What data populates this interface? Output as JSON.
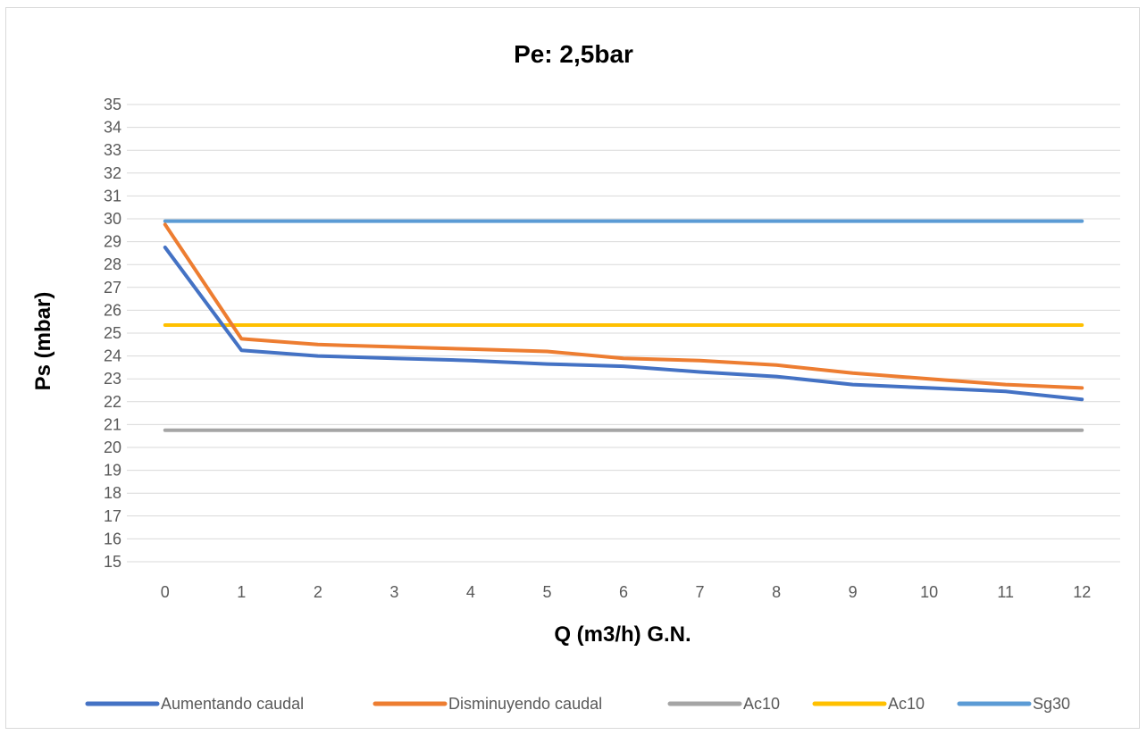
{
  "chart_data": {
    "type": "line",
    "title": "Pe: 2,5bar",
    "xlabel": "Q (m3/h) G.N.",
    "ylabel": "Ps (mbar)",
    "x": [
      0,
      1,
      2,
      3,
      4,
      5,
      6,
      7,
      8,
      9,
      10,
      11,
      12
    ],
    "x_tick_labels": [
      "0",
      "1",
      "2",
      "3",
      "4",
      "5",
      "6",
      "7",
      "8",
      "9",
      "10",
      "11",
      "12"
    ],
    "ylim": [
      15,
      35
    ],
    "y_tick_labels": [
      "15",
      "16",
      "17",
      "18",
      "19",
      "20",
      "21",
      "22",
      "23",
      "24",
      "25",
      "26",
      "27",
      "28",
      "29",
      "30",
      "31",
      "32",
      "33",
      "34",
      "35"
    ],
    "grid": true,
    "legend_position": "bottom",
    "series": [
      {
        "name": "Aumentando caudal",
        "color": "#4472c4",
        "values": [
          28.75,
          24.25,
          24.0,
          23.9,
          23.8,
          23.65,
          23.55,
          23.3,
          23.1,
          22.75,
          22.6,
          22.45,
          22.1
        ]
      },
      {
        "name": "Disminuyendo caudal",
        "color": "#ed7d31",
        "values": [
          29.75,
          24.75,
          24.5,
          24.4,
          24.3,
          24.2,
          23.9,
          23.8,
          23.6,
          23.25,
          23.0,
          22.75,
          22.6
        ]
      },
      {
        "name": "Ac10",
        "color": "#a5a5a5",
        "values": [
          20.75,
          20.75,
          20.75,
          20.75,
          20.75,
          20.75,
          20.75,
          20.75,
          20.75,
          20.75,
          20.75,
          20.75,
          20.75
        ]
      },
      {
        "name": "Ac10",
        "color": "#ffc000",
        "values": [
          25.35,
          25.35,
          25.35,
          25.35,
          25.35,
          25.35,
          25.35,
          25.35,
          25.35,
          25.35,
          25.35,
          25.35,
          25.35
        ]
      },
      {
        "name": "Sg30",
        "color": "#5b9bd5",
        "values": [
          29.9,
          29.9,
          29.9,
          29.9,
          29.9,
          29.9,
          29.9,
          29.9,
          29.9,
          29.9,
          29.9,
          29.9,
          29.9
        ]
      }
    ]
  }
}
